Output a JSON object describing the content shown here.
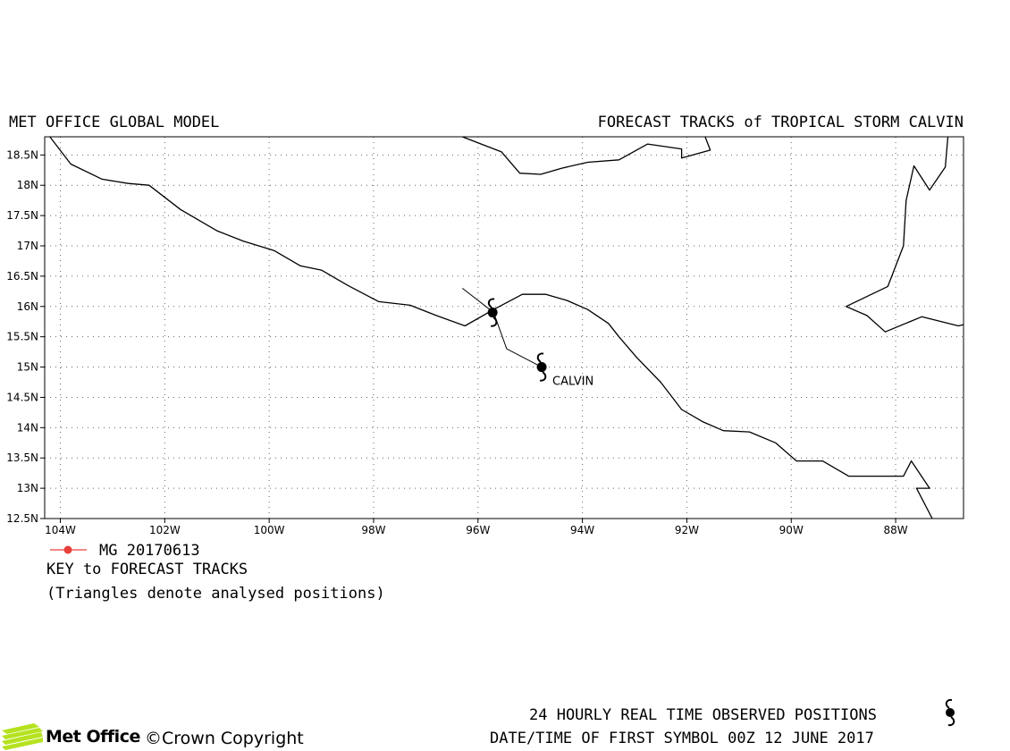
{
  "header": {
    "left_title": "MET OFFICE GLOBAL MODEL",
    "right_title": "FORECAST TRACKS of TROPICAL STORM CALVIN"
  },
  "map": {
    "lon_range": [
      -104.3,
      -86.7
    ],
    "lat_range": [
      12.5,
      18.8
    ],
    "lon_ticks": [
      "104W",
      "102W",
      "100W",
      "98W",
      "96W",
      "94W",
      "92W",
      "90W",
      "88W"
    ],
    "lon_tick_values": [
      -104,
      -102,
      -100,
      -98,
      -96,
      -94,
      -92,
      -90,
      -88
    ],
    "lat_ticks": [
      "18.5N",
      "18N",
      "17.5N",
      "17N",
      "16.5N",
      "16N",
      "15.5N",
      "15N",
      "14.5N",
      "14N",
      "13.5N",
      "13N",
      "12.5N"
    ],
    "lat_tick_values": [
      18.5,
      18.0,
      17.5,
      17.0,
      16.5,
      16.0,
      15.5,
      15.0,
      14.5,
      14.0,
      13.5,
      13.0,
      12.5
    ],
    "grid": true,
    "coast_color": "#000000",
    "track_color": "#000000",
    "forecast_color": "#e8403a",
    "storm_label": "CALVIN",
    "coastlines": [
      [
        [
          -104.2,
          18.8
        ],
        [
          -103.8,
          18.35
        ],
        [
          -103.2,
          18.1
        ],
        [
          -102.7,
          18.03
        ],
        [
          -102.3,
          18.0
        ],
        [
          -101.7,
          17.6
        ],
        [
          -101.0,
          17.25
        ],
        [
          -100.5,
          17.08
        ],
        [
          -99.9,
          16.92
        ],
        [
          -99.4,
          16.67
        ],
        [
          -99.0,
          16.6
        ],
        [
          -98.5,
          16.35
        ],
        [
          -97.9,
          16.08
        ],
        [
          -97.3,
          16.02
        ],
        [
          -96.8,
          15.85
        ],
        [
          -96.25,
          15.68
        ],
        [
          -95.7,
          15.95
        ],
        [
          -95.15,
          16.2
        ],
        [
          -94.7,
          16.2
        ],
        [
          -94.3,
          16.1
        ],
        [
          -93.9,
          15.95
        ],
        [
          -93.5,
          15.72
        ],
        [
          -93.3,
          15.5
        ],
        [
          -92.95,
          15.15
        ],
        [
          -92.5,
          14.75
        ],
        [
          -92.1,
          14.3
        ],
        [
          -91.7,
          14.1
        ],
        [
          -91.3,
          13.95
        ],
        [
          -90.8,
          13.93
        ],
        [
          -90.3,
          13.75
        ],
        [
          -89.9,
          13.45
        ],
        [
          -89.4,
          13.45
        ],
        [
          -88.9,
          13.2
        ],
        [
          -88.3,
          13.2
        ],
        [
          -87.85,
          13.2
        ],
        [
          -87.7,
          13.45
        ],
        [
          -87.35,
          13.0
        ],
        [
          -87.6,
          13.0
        ],
        [
          -87.3,
          12.5
        ]
      ],
      [
        [
          -96.3,
          18.8
        ],
        [
          -95.55,
          18.55
        ],
        [
          -95.2,
          18.2
        ],
        [
          -94.8,
          18.18
        ],
        [
          -94.4,
          18.28
        ],
        [
          -93.9,
          18.38
        ],
        [
          -93.3,
          18.42
        ],
        [
          -92.75,
          18.68
        ],
        [
          -92.1,
          18.6
        ],
        [
          -92.1,
          18.45
        ],
        [
          -91.55,
          18.58
        ],
        [
          -91.65,
          18.8
        ]
      ],
      [
        [
          -87.0,
          18.8
        ],
        [
          -87.05,
          18.3
        ],
        [
          -87.35,
          17.92
        ],
        [
          -87.65,
          18.32
        ],
        [
          -87.8,
          17.75
        ],
        [
          -87.85,
          17.0
        ],
        [
          -88.15,
          16.33
        ],
        [
          -88.95,
          16.0
        ],
        [
          -88.55,
          15.85
        ],
        [
          -88.2,
          15.58
        ],
        [
          -87.5,
          15.83
        ],
        [
          -86.8,
          15.68
        ],
        [
          -86.7,
          15.7
        ]
      ]
    ],
    "observed_track": [
      [
        -96.3,
        16.3
      ],
      [
        -95.7,
        15.9
      ],
      [
        -95.45,
        15.3
      ],
      [
        -94.78,
        15.0
      ]
    ],
    "forecast_point": [
      -95.72,
      15.9
    ],
    "storm_positions": [
      [
        -95.72,
        15.9
      ],
      [
        -94.78,
        15.0
      ]
    ]
  },
  "legend": {
    "forecast_label": "MG 20170613",
    "key_title": "KEY to FORECAST TRACKS",
    "key_note": "(Triangles denote analysed positions)"
  },
  "footer": {
    "logo_text": "Met Office",
    "copyright": "©Crown Copyright",
    "observed_note": "24 HOURLY REAL TIME OBSERVED POSITIONS",
    "first_symbol": "DATE/TIME OF FIRST SYMBOL 00Z 12 JUNE 2017"
  }
}
